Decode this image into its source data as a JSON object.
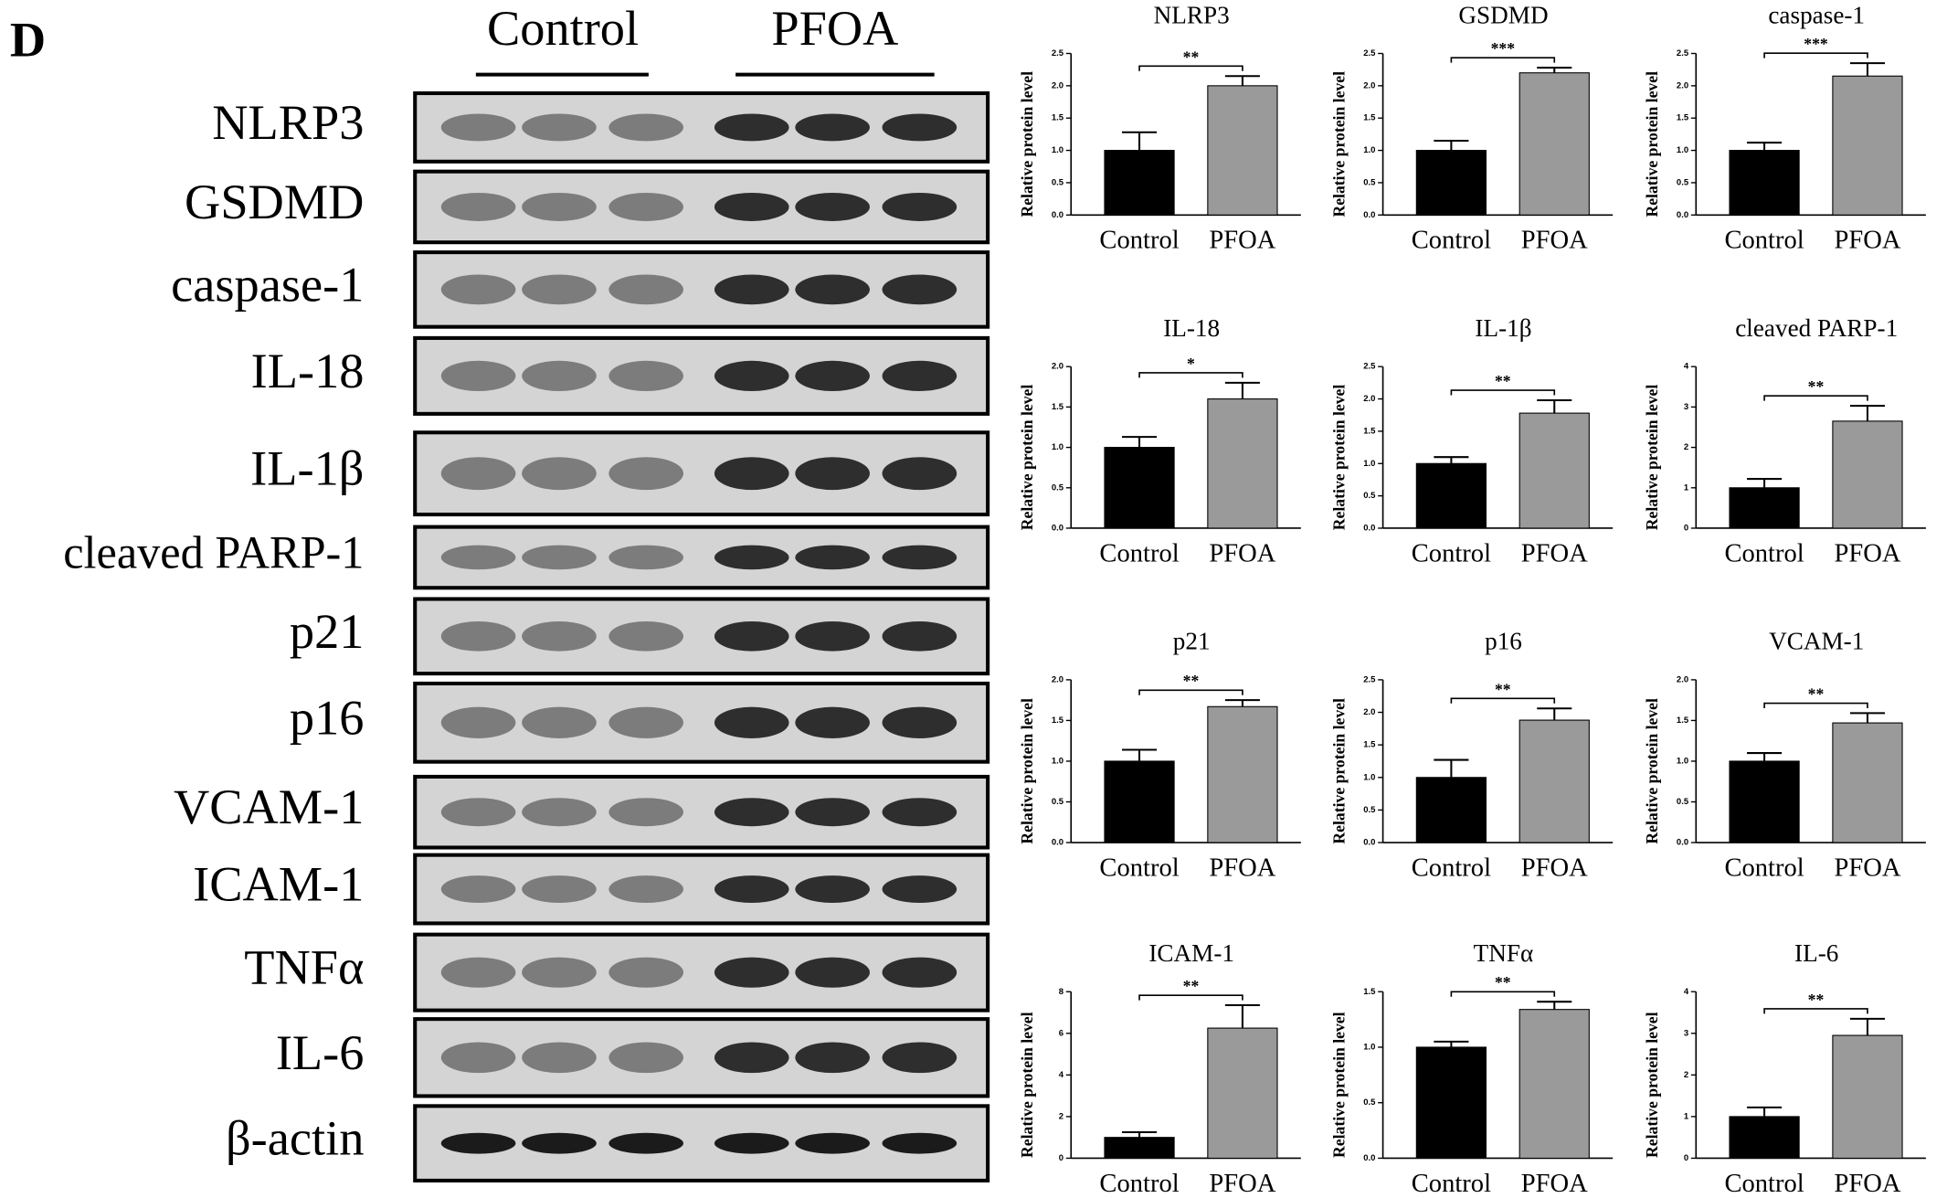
{
  "panel_label": "D",
  "blot": {
    "groups": [
      "Control",
      "PFOA"
    ],
    "rows": [
      "NLRP3",
      "GSDMD",
      "caspase-1",
      "IL-18",
      "IL-1β",
      "cleaved PARP-1",
      "p21",
      "p16",
      "VCAM-1",
      "ICAM-1",
      "TNFα",
      "IL-6",
      "β-actin"
    ]
  },
  "chart_data": [
    {
      "type": "bar",
      "title": "NLRP3",
      "y_label": "Relative protein level",
      "categories": [
        "Control",
        "PFOA"
      ],
      "values": [
        1.0,
        2.0
      ],
      "errors": [
        0.28,
        0.15
      ],
      "colors": [
        "#000000",
        "#9a9a9a"
      ],
      "annotation": "**",
      "ylim": [
        0,
        2.5
      ],
      "yticks": [
        {
          "value": 0,
          "label": "0.0"
        },
        0.5,
        {
          "value": 1,
          "label": "1.0"
        },
        1.5,
        {
          "value": 2,
          "label": "2.0"
        },
        2.5
      ]
    },
    {
      "type": "bar",
      "title": "GSDMD",
      "y_label": "Relative protein level",
      "categories": [
        "Control",
        "PFOA"
      ],
      "values": [
        1.0,
        2.2
      ],
      "errors": [
        0.15,
        0.08
      ],
      "colors": [
        "#000000",
        "#9a9a9a"
      ],
      "annotation": "***",
      "ylim": [
        0,
        2.5
      ],
      "yticks": [
        {
          "value": 0,
          "label": "0.0"
        },
        0.5,
        {
          "value": 1,
          "label": "1.0"
        },
        1.5,
        {
          "value": 2,
          "label": "2.0"
        },
        2.5
      ]
    },
    {
      "type": "bar",
      "title": "caspase-1",
      "y_label": "Relative protein level",
      "categories": [
        "Control",
        "PFOA"
      ],
      "values": [
        1.0,
        2.15
      ],
      "errors": [
        0.12,
        0.2
      ],
      "colors": [
        "#000000",
        "#9a9a9a"
      ],
      "annotation": "***",
      "ylim": [
        0,
        2.5
      ],
      "yticks": [
        {
          "value": 0,
          "label": "0.0"
        },
        0.5,
        {
          "value": 1,
          "label": "1.0"
        },
        1.5,
        {
          "value": 2,
          "label": "2.0"
        },
        2.5
      ]
    },
    {
      "type": "bar",
      "title": "IL-18",
      "y_label": "Relative protein level",
      "categories": [
        "Control",
        "PFOA"
      ],
      "values": [
        1.0,
        1.6
      ],
      "errors": [
        0.13,
        0.2
      ],
      "colors": [
        "#000000",
        "#9a9a9a"
      ],
      "annotation": "*",
      "ylim": [
        0,
        2
      ],
      "yticks": [
        {
          "value": 0,
          "label": "0.0"
        },
        0.5,
        {
          "value": 1,
          "label": "1.0"
        },
        1.5,
        {
          "value": 2,
          "label": "2.0"
        }
      ]
    },
    {
      "type": "bar",
      "title": "IL-1β",
      "y_label": "Relative protein level",
      "categories": [
        "Control",
        "PFOA"
      ],
      "values": [
        1.0,
        1.78
      ],
      "errors": [
        0.1,
        0.2
      ],
      "colors": [
        "#000000",
        "#9a9a9a"
      ],
      "annotation": "**",
      "ylim": [
        0,
        2.5
      ],
      "yticks": [
        {
          "value": 0,
          "label": "0.0"
        },
        0.5,
        {
          "value": 1,
          "label": "1.0"
        },
        1.5,
        {
          "value": 2,
          "label": "2.0"
        },
        2.5
      ]
    },
    {
      "type": "bar",
      "title": "cleaved PARP-1",
      "y_label": "Relative protein level",
      "categories": [
        "Control",
        "PFOA"
      ],
      "values": [
        1.0,
        2.65
      ],
      "errors": [
        0.22,
        0.38
      ],
      "colors": [
        "#000000",
        "#9a9a9a"
      ],
      "annotation": "**",
      "ylim": [
        0,
        4
      ],
      "yticks": [
        0,
        1,
        2,
        3,
        4
      ]
    },
    {
      "type": "bar",
      "title": "p21",
      "y_label": "Relative protein level",
      "categories": [
        "Control",
        "PFOA"
      ],
      "values": [
        1.0,
        1.67
      ],
      "errors": [
        0.14,
        0.08
      ],
      "colors": [
        "#000000",
        "#9a9a9a"
      ],
      "annotation": "**",
      "ylim": [
        0,
        2
      ],
      "yticks": [
        {
          "value": 0,
          "label": "0.0"
        },
        0.5,
        {
          "value": 1,
          "label": "1.0"
        },
        1.5,
        {
          "value": 2,
          "label": "2.0"
        }
      ]
    },
    {
      "type": "bar",
      "title": "p16",
      "y_label": "Relative protein level",
      "categories": [
        "Control",
        "PFOA"
      ],
      "values": [
        1.0,
        1.88
      ],
      "errors": [
        0.27,
        0.18
      ],
      "colors": [
        "#000000",
        "#9a9a9a"
      ],
      "annotation": "**",
      "ylim": [
        0,
        2.5
      ],
      "yticks": [
        {
          "value": 0,
          "label": "0.0"
        },
        0.5,
        {
          "value": 1,
          "label": "1.0"
        },
        1.5,
        {
          "value": 2,
          "label": "2.0"
        },
        2.5
      ]
    },
    {
      "type": "bar",
      "title": "VCAM-1",
      "y_label": "Relative protein level",
      "categories": [
        "Control",
        "PFOA"
      ],
      "values": [
        1.0,
        1.47
      ],
      "errors": [
        0.1,
        0.12
      ],
      "colors": [
        "#000000",
        "#9a9a9a"
      ],
      "annotation": "**",
      "ylim": [
        0,
        2
      ],
      "yticks": [
        {
          "value": 0,
          "label": "0.0"
        },
        0.5,
        {
          "value": 1,
          "label": "1.0"
        },
        1.5,
        {
          "value": 2,
          "label": "2.0"
        }
      ]
    },
    {
      "type": "bar",
      "title": "ICAM-1",
      "y_label": "Relative protein level",
      "categories": [
        "Control",
        "PFOA"
      ],
      "values": [
        1.0,
        6.25
      ],
      "errors": [
        0.25,
        1.1
      ],
      "colors": [
        "#000000",
        "#9a9a9a"
      ],
      "annotation": "**",
      "ylim": [
        0,
        8
      ],
      "yticks": [
        0,
        2,
        4,
        6,
        8
      ]
    },
    {
      "type": "bar",
      "title": "TNFα",
      "y_label": "Relative protein level",
      "categories": [
        "Control",
        "PFOA"
      ],
      "values": [
        1.0,
        1.34
      ],
      "errors": [
        0.05,
        0.07
      ],
      "colors": [
        "#000000",
        "#9a9a9a"
      ],
      "annotation": "**",
      "ylim": [
        0,
        1.5
      ],
      "yticks": [
        {
          "value": 0,
          "label": "0.0"
        },
        0.5,
        {
          "value": 1,
          "label": "1.0"
        },
        1.5
      ]
    },
    {
      "type": "bar",
      "title": "IL-6",
      "y_label": "Relative protein level",
      "categories": [
        "Control",
        "PFOA"
      ],
      "values": [
        1.0,
        2.95
      ],
      "errors": [
        0.22,
        0.4
      ],
      "colors": [
        "#000000",
        "#9a9a9a"
      ],
      "annotation": "**",
      "ylim": [
        0,
        4
      ],
      "yticks": [
        0,
        1,
        2,
        3,
        4
      ]
    }
  ]
}
